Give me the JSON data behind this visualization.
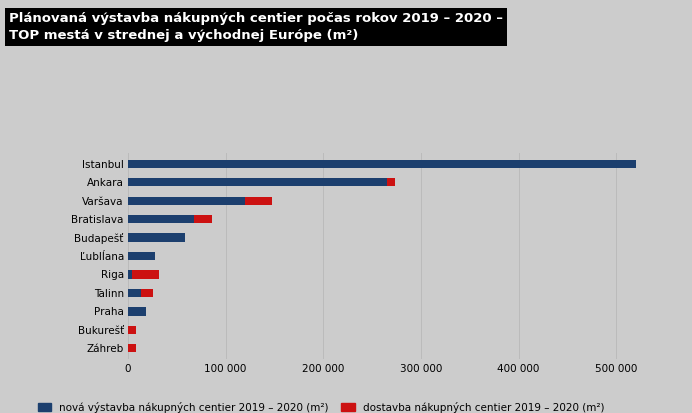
{
  "title_line1": "Plánovaná výstavba nákupných centier počas rokov 2019 – 2020 –",
  "title_line2": "TOP mestá v strednej a východnej Európe (m²)",
  "background_color": "#cccccc",
  "title_bg_color": "#000000",
  "title_text_color": "#ffffff",
  "categories": [
    "Istanbul",
    "Ankara",
    "Varšava",
    "Bratislava",
    "Budapešť",
    "Ľublĺana",
    "Riga",
    "Talinn",
    "Praha",
    "Bukurešť",
    "Záhreb"
  ],
  "blue_values": [
    520000,
    265000,
    120000,
    68000,
    58000,
    28000,
    4000,
    13000,
    18000,
    0,
    0
  ],
  "red_values": [
    0,
    8000,
    28000,
    18000,
    0,
    0,
    28000,
    13000,
    0,
    8000,
    8000
  ],
  "blue_color": "#1c3f6e",
  "red_color": "#cc1111",
  "xlim_max": 560000,
  "xtick_values": [
    0,
    100000,
    200000,
    300000,
    400000,
    500000
  ],
  "xtick_labels": [
    "0",
    "100 000",
    "200 000",
    "300 000",
    "400 000",
    "500 000"
  ],
  "legend_blue_label": "nová výstavba nákupných centier 2019 – 2020 (m²)",
  "legend_red_label": "dostavba nákupných centier 2019 – 2020 (m²)",
  "grid_color": "#bbbbbb",
  "bar_height": 0.45,
  "fontsize_labels": 7.5,
  "fontsize_ticks": 7.5,
  "fontsize_title": 9.5,
  "fontsize_legend": 7.5
}
